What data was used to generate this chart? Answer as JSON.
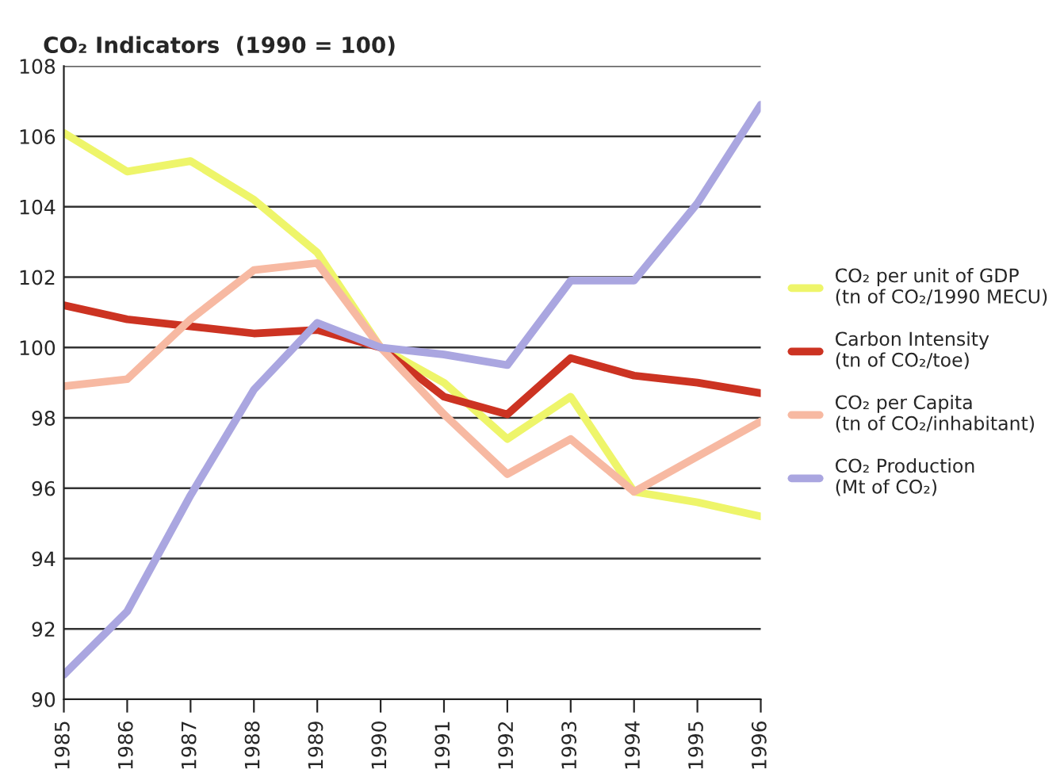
{
  "chart_data": {
    "type": "line",
    "title": "CO₂ Indicators  (1990 = 100)",
    "categories": [
      "1985",
      "1986",
      "1987",
      "1988",
      "1989",
      "1990",
      "1991",
      "1992",
      "1993",
      "1994",
      "1995",
      "1996"
    ],
    "series": [
      {
        "name": "CO₂ per unit of GDP\n(tn of CO₂/1990 MECU)",
        "color": "#eef56a",
        "values": [
          106.1,
          105.0,
          105.3,
          104.2,
          102.7,
          100.0,
          99.0,
          97.4,
          98.6,
          95.9,
          95.6,
          95.2
        ]
      },
      {
        "name": "Carbon Intensity\n(tn of CO₂/toe)",
        "color": "#cc3322",
        "values": [
          101.2,
          100.8,
          100.6,
          100.4,
          100.5,
          100.0,
          98.6,
          98.1,
          99.7,
          99.2,
          99.0,
          98.7
        ]
      },
      {
        "name": "CO₂ per Capita\n(tn of CO₂/inhabitant)",
        "color": "#f7b9a2",
        "values": [
          98.9,
          99.1,
          100.8,
          102.2,
          102.4,
          100.0,
          98.1,
          96.4,
          97.4,
          95.9,
          96.9,
          97.9
        ]
      },
      {
        "name": "CO₂ Production\n(Mt of CO₂)",
        "color": "#aaa6e0",
        "values": [
          90.7,
          92.5,
          95.8,
          98.8,
          100.7,
          100.0,
          99.8,
          99.5,
          101.9,
          101.9,
          104.1,
          106.9
        ]
      }
    ],
    "ylim": [
      90,
      108
    ],
    "yticks": [
      90,
      92,
      94,
      96,
      98,
      100,
      102,
      104,
      106,
      108
    ],
    "grid": "y",
    "legend": "right",
    "marker": "none",
    "line_style": "solid"
  }
}
